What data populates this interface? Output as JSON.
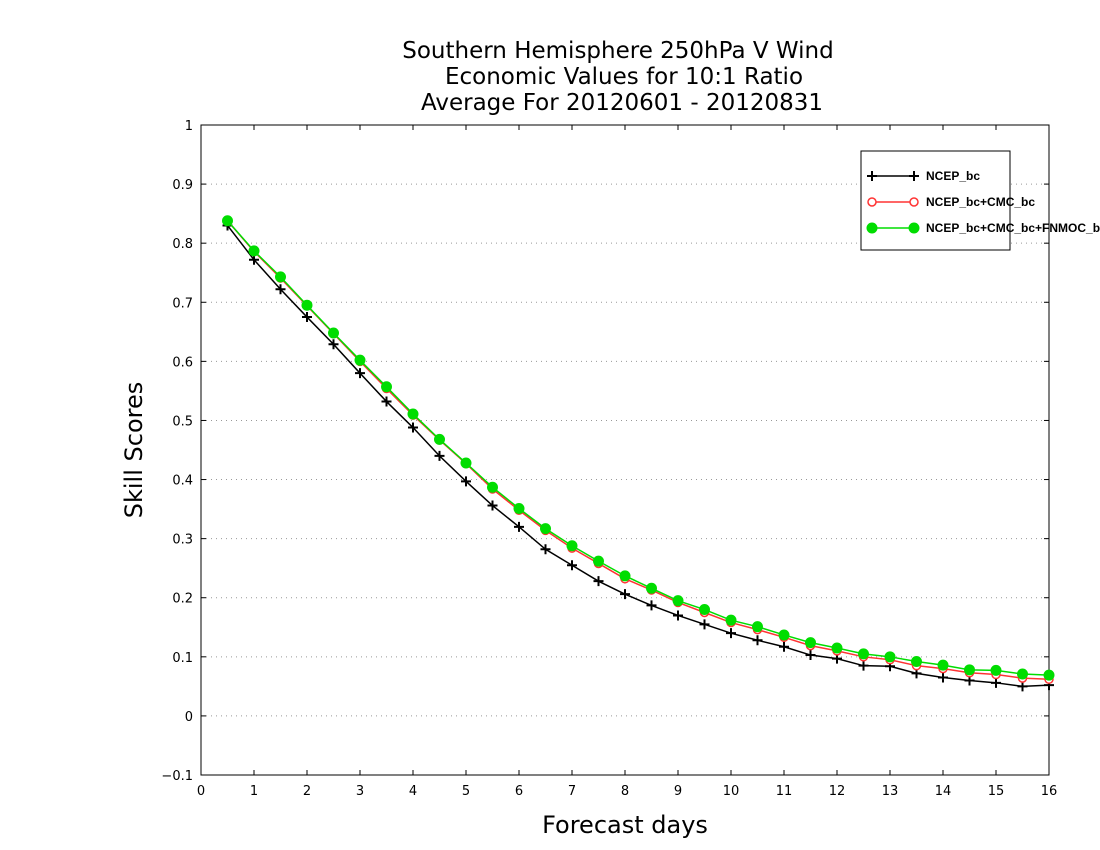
{
  "chart_data": {
    "type": "line",
    "title_lines": [
      "Southern Hemisphere 250hPa V Wind",
      "Economic Values for 10:1 Ratio",
      "Average For 20120601 - 20120831"
    ],
    "xlabel": "Forecast days",
    "ylabel": "Skill Scores",
    "xlim": [
      0,
      16
    ],
    "ylim": [
      -0.1,
      1
    ],
    "xticks": [
      "0",
      "1",
      "2",
      "3",
      "4",
      "5",
      "6",
      "7",
      "8",
      "9",
      "10",
      "11",
      "12",
      "13",
      "14",
      "15",
      "16"
    ],
    "yticks": [
      "-0.1",
      "0",
      "0.1",
      "0.2",
      "0.3",
      "0.4",
      "0.5",
      "0.6",
      "0.7",
      "0.8",
      "0.9",
      "1"
    ],
    "grid": "horizontal-dotted",
    "legend_position": "top-right",
    "x": [
      0.5,
      1,
      1.5,
      2,
      2.5,
      3,
      3.5,
      4,
      4.5,
      5,
      5.5,
      6,
      6.5,
      7,
      7.5,
      8,
      8.5,
      9,
      9.5,
      10,
      10.5,
      11,
      11.5,
      12,
      12.5,
      13,
      13.5,
      14,
      14.5,
      15,
      15.5,
      16
    ],
    "series": [
      {
        "name": "NCEP_bc",
        "color": "#000000",
        "marker": "plus",
        "values": [
          0.83,
          0.772,
          0.722,
          0.675,
          0.629,
          0.58,
          0.532,
          0.488,
          0.44,
          0.397,
          0.356,
          0.32,
          0.282,
          0.255,
          0.228,
          0.206,
          0.187,
          0.17,
          0.155,
          0.14,
          0.128,
          0.117,
          0.103,
          0.097,
          0.085,
          0.084,
          0.072,
          0.065,
          0.06,
          0.056,
          0.05,
          0.052
        ]
      },
      {
        "name": "NCEP_bc+CMC_bc",
        "color": "#ff3333",
        "marker": "open-circle",
        "values": [
          0.838,
          0.786,
          0.741,
          0.694,
          0.647,
          0.6,
          0.554,
          0.509,
          0.467,
          0.427,
          0.384,
          0.348,
          0.314,
          0.284,
          0.258,
          0.232,
          0.213,
          0.192,
          0.175,
          0.158,
          0.146,
          0.133,
          0.119,
          0.11,
          0.1,
          0.095,
          0.085,
          0.08,
          0.073,
          0.07,
          0.064,
          0.062
        ]
      },
      {
        "name": "NCEP_bc+CMC_bc+FNMOC_bc",
        "color": "#00dd00",
        "marker": "filled-circle",
        "values": [
          0.838,
          0.787,
          0.743,
          0.695,
          0.648,
          0.602,
          0.557,
          0.511,
          0.468,
          0.428,
          0.387,
          0.351,
          0.317,
          0.288,
          0.262,
          0.237,
          0.216,
          0.195,
          0.18,
          0.162,
          0.151,
          0.137,
          0.124,
          0.115,
          0.105,
          0.1,
          0.092,
          0.086,
          0.078,
          0.077,
          0.071,
          0.069
        ]
      }
    ]
  }
}
